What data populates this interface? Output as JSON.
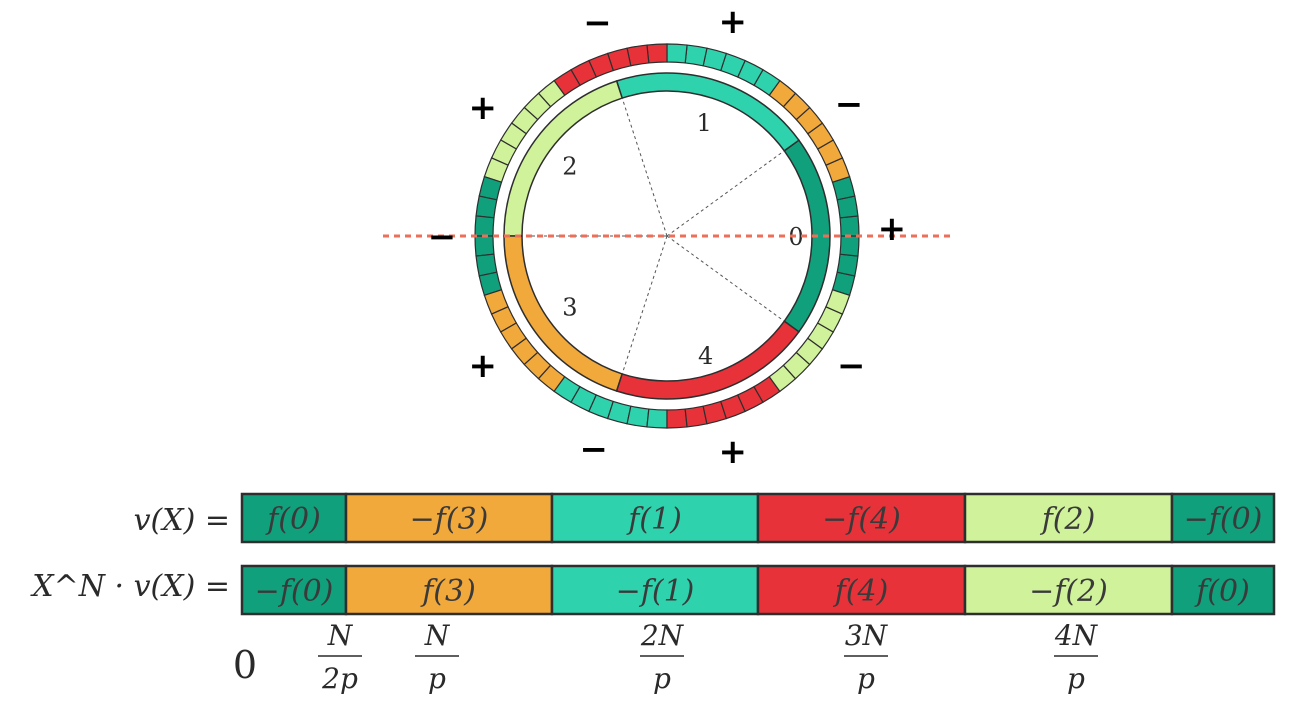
{
  "colors": {
    "dark_green": "#11a07c",
    "orange": "#f2a93b",
    "teal": "#2ed3ae",
    "red": "#e8323a",
    "light_green": "#cff29a",
    "dashed_red": "#ef6e57",
    "stroke": "#2e2e2e"
  },
  "circle": {
    "inner_labels": [
      "0",
      "1",
      "2",
      "3",
      "4"
    ],
    "signs": [
      "+",
      "−",
      "+",
      "−",
      "+",
      "−",
      "+",
      "−",
      "+",
      "−"
    ]
  },
  "rows": [
    {
      "label": "v(X) =",
      "segments": [
        "f(0)",
        "−f(3)",
        "f(1)",
        "−f(4)",
        "f(2)",
        "−f(0)"
      ]
    },
    {
      "label": "X^N · v(X) =",
      "segments": [
        "−f(0)",
        "f(3)",
        "−f(1)",
        "f(4)",
        "−f(2)",
        "f(0)"
      ]
    }
  ],
  "ticks": [
    {
      "num": "0",
      "den": ""
    },
    {
      "num": "N",
      "den": "2p"
    },
    {
      "num": "N",
      "den": "p"
    },
    {
      "num": "2N",
      "den": "p"
    },
    {
      "num": "3N",
      "den": "p"
    },
    {
      "num": "4N",
      "den": "p"
    }
  ]
}
